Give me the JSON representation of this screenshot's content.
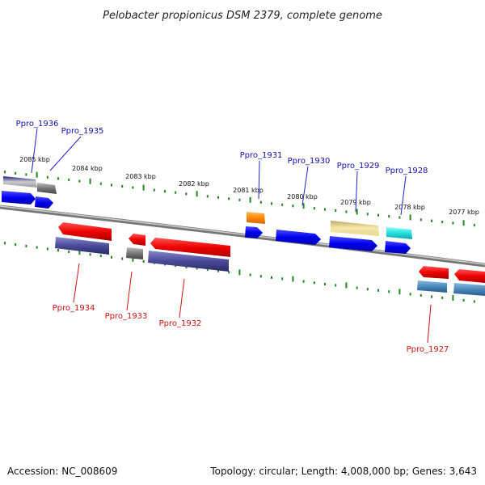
{
  "title": "Pelobacter propionicus DSM 2379, complete genome",
  "footer": {
    "accession": "Accession: NC_008609",
    "topology": "Topology: circular; Length: 4,008,000 bp; Genes: 3,643"
  },
  "ticks": [
    "2085 kbp",
    "2084 kbp",
    "2083 kbp",
    "2082 kbp",
    "2081 kbp",
    "2080 kbp",
    "2079 kbp",
    "2078 kbp",
    "2077 kbp"
  ],
  "genes_forward": [
    "Ppro_1936",
    "Ppro_1935",
    "Ppro_1931",
    "Ppro_1930",
    "Ppro_1929",
    "Ppro_1928"
  ],
  "genes_reverse": [
    "Ppro_1934",
    "Ppro_1933",
    "Ppro_1932",
    "Ppro_1927"
  ],
  "colors": {
    "forward_label": "#1111aa",
    "reverse_label": "#cc1111",
    "tick": "#228822",
    "backbone": "#888888",
    "cds_forward": "#0000ee",
    "cds_reverse": "#ee0000",
    "cog_purple": "#4a4a99",
    "cog_grey": "#777777",
    "cog_orange": "#ff8800",
    "cog_yellow": "#eee09a",
    "cog_cyan": "#22dddd",
    "cog_steel": "#4a88bb",
    "cog_navy": "#111166"
  }
}
